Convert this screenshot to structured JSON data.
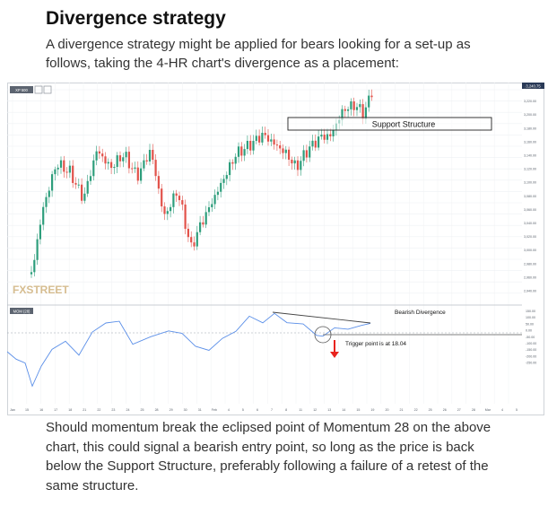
{
  "article": {
    "heading": "Divergence strategy",
    "intro": "A divergence strategy might be applied for bears looking for a set-up as follows, taking the 4-HR chart's divergence as a placement:",
    "outro": "Should momentum break the eclipsed point of Momentum 28 on the above chart, this could signal a bearish entry point, so long as the price is back below the Support Structure, preferably following a failure of a retest of the same structure."
  },
  "chart": {
    "symbol_tag": "XP 500",
    "indicator_tag": "MOM (28)",
    "watermark": "FXSTREET",
    "last_price_badge": "3,240.75",
    "annotations": {
      "support": "Support Structure",
      "divergence": "Bearish Divergence",
      "trigger": "Trigger point is at 18.04"
    },
    "price_axis_labels": [
      "3,240.00",
      "3,220.00",
      "3,200.00",
      "3,180.00",
      "3,160.00",
      "3,140.00",
      "3,120.00",
      "3,100.00",
      "3,080.00",
      "3,060.00",
      "3,040.00",
      "3,020.00",
      "3,000.00",
      "2,980.00",
      "2,960.00",
      "2,940.00"
    ],
    "momentum_axis_labels": [
      "150.00",
      "100.00",
      "50.00",
      "0.00",
      "-50.00",
      "-100.00",
      "-150.00",
      "-200.00",
      "-250.00"
    ],
    "time_axis_labels": [
      "Jan",
      "15",
      "16",
      "17",
      "18",
      "21",
      "22",
      "23",
      "24",
      "25",
      "28",
      "29",
      "30",
      "31",
      "Feb",
      "4",
      "5",
      "6",
      "7",
      "8",
      "11",
      "12",
      "13",
      "14",
      "15",
      "19",
      "20",
      "21",
      "22",
      "25",
      "26",
      "27",
      "28",
      "Mar",
      "4",
      "5"
    ],
    "colors": {
      "up": "#2e9e7c",
      "down": "#e2524a",
      "momentum": "#5b8fe8",
      "support_box": "#222222",
      "trigger_arrow": "#e8231e"
    }
  }
}
